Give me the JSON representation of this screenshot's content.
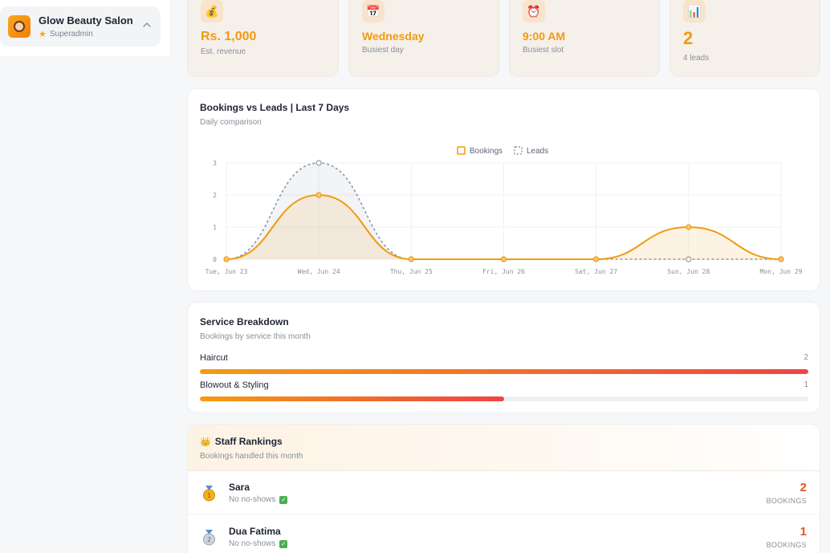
{
  "sidebar": {
    "salon_name": "Glow Beauty Salon",
    "role": "Superadmin"
  },
  "stats": [
    {
      "icon": "money-bag-icon",
      "value": "Rs. 1,000",
      "label": "Est. revenue"
    },
    {
      "icon": "calendar-icon",
      "value": "Wednesday",
      "label": "Busiest day"
    },
    {
      "icon": "alarm-clock-icon",
      "value": "9:00 AM",
      "label": "Busiest slot"
    },
    {
      "icon": "bar-chart-icon",
      "value": "2",
      "label": "4 leads"
    }
  ],
  "bookings_chart": {
    "title": "Bookings vs Leads | Last 7 Days",
    "subtitle": "Daily comparison"
  },
  "chart_data": {
    "type": "line",
    "categories": [
      "Tue, Jun 23",
      "Wed, Jun 24",
      "Thu, Jun 25",
      "Fri, Jun 26",
      "Sat, Jun 27",
      "Sun, Jun 28",
      "Mon, Jun 29"
    ],
    "series": [
      {
        "name": "Bookings",
        "values": [
          0,
          2,
          0,
          0,
          0,
          1,
          0
        ],
        "color": "#f29a0e",
        "style": "solid",
        "fill": true
      },
      {
        "name": "Leads",
        "values": [
          0,
          3,
          0,
          0,
          0,
          0,
          0
        ],
        "color": "#8d97ab",
        "style": "dashed",
        "fill": true
      }
    ],
    "ylim": [
      0,
      3
    ],
    "yticks": [
      "0",
      "1",
      "2",
      "3"
    ],
    "legend": "top-center",
    "grid": true
  },
  "service_breakdown": {
    "title": "Service Breakdown",
    "subtitle": "Bookings by service this month",
    "items": [
      {
        "name": "Haircut",
        "count": "2",
        "fraction": 1.0
      },
      {
        "name": "Blowout & Styling",
        "count": "1",
        "fraction": 0.5
      }
    ]
  },
  "staff_rankings": {
    "title": "Staff Rankings",
    "subtitle": "Bookings handled this month",
    "unit_label": "BOOKINGS",
    "rows": [
      {
        "name": "Sara",
        "note": "No no-shows",
        "count": "2",
        "medal": "gold-medal-icon",
        "rank": "1"
      },
      {
        "name": "Dua Fatima",
        "note": "No no-shows",
        "count": "1",
        "medal": "silver-medal-icon",
        "rank": "2"
      }
    ]
  },
  "colors": {
    "accent": "#f29a0e",
    "leads": "#8d97ab",
    "danger": "#ef4444",
    "rank_count": "#e8541e"
  }
}
